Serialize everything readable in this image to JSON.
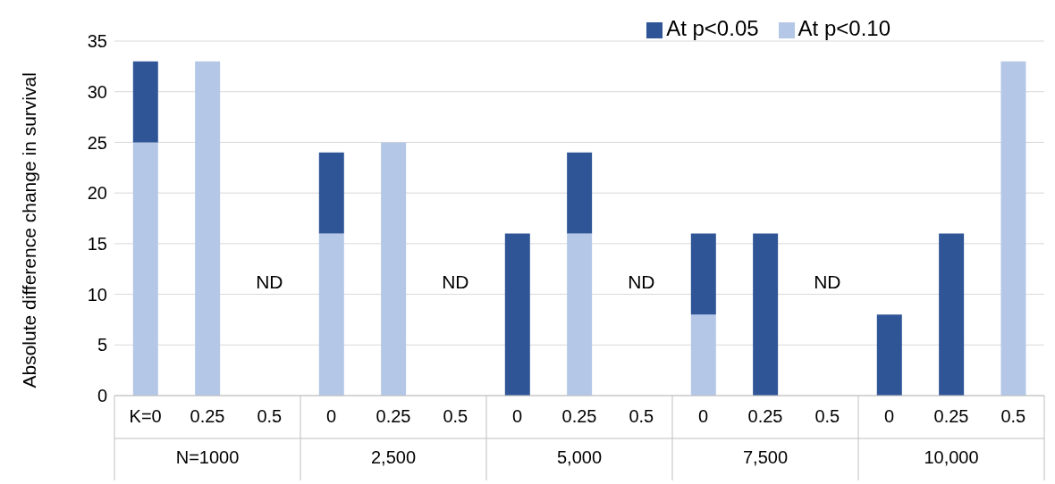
{
  "chart_data": {
    "type": "bar",
    "stacked": true,
    "ylabel": "Absolute difference change in survival",
    "categories": [
      "K=0",
      "0.25",
      "0.5",
      "0",
      "0.25",
      "0.5",
      "0",
      "0.25",
      "0.5",
      "0",
      "0.25",
      "0.5",
      "0",
      "0.25",
      "0.5"
    ],
    "series": [
      {
        "name": "At p<0.10",
        "color": "#b4c7e7",
        "values": [
          25,
          33,
          null,
          16,
          25,
          null,
          null,
          16,
          null,
          8,
          null,
          null,
          null,
          null,
          33
        ]
      },
      {
        "name": "At p<0.05",
        "color": "#2f5597",
        "values": [
          8,
          null,
          null,
          8,
          null,
          null,
          16,
          8,
          null,
          8,
          16,
          null,
          8,
          16,
          null
        ]
      }
    ],
    "annotations": [
      "N=1000",
      "2,500",
      "5,000",
      "7,500",
      "10,000",
      "ND",
      "ND",
      "ND",
      "ND"
    ],
    "ylim": [
      0,
      35
    ],
    "yticks": [
      0,
      5,
      10,
      15,
      20,
      25,
      30,
      35
    ],
    "grid": "y",
    "legend": "top right"
  }
}
